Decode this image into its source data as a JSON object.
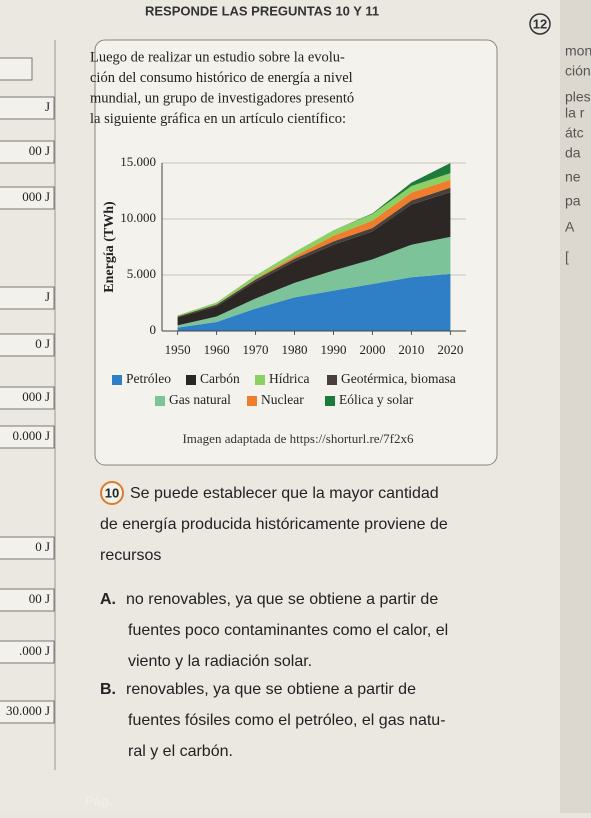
{
  "header": "RESPONDE LAS PREGUNTAS 10 Y 11",
  "number": "12",
  "intro": [
    "Luego de realizar un estudio sobre la evolu-",
    "ción del consumo histórico de energía a nivel",
    "mundial, un grupo de investigadores presentó",
    "la siguiente gráfica en un artículo científico:"
  ],
  "source": "Imagen adaptada de https://shorturl.re/7f2x6",
  "question": {
    "number": "10",
    "lines": [
      "Se puede establecer que la mayor cantidad",
      "de energía producida históricamente proviene de",
      "recursos"
    ]
  },
  "options": [
    {
      "letter": "A.",
      "lines": [
        "no renovables, ya que se obtiene a partir de",
        "fuentes poco contaminantes como el calor, el",
        "viento y la radiación solar."
      ]
    },
    {
      "letter": "B.",
      "lines": [
        "renovables, ya que se obtiene a partir de",
        "fuentes fósiles como el petróleo, el gas natu-",
        "ral y el carbón."
      ]
    }
  ],
  "page_label": "Pág.",
  "margin_left": [
    "J",
    "00 J",
    "000 J",
    "J",
    "0 J",
    "000 J",
    "0.000 J",
    "0 J",
    "00 J",
    ".000 J",
    "30.000 J"
  ],
  "margin_right": [
    "mon",
    "ción",
    "ples",
    "la r",
    "átc",
    "da",
    "ne",
    "pa",
    "A",
    "["
  ],
  "chart_data": {
    "type": "stacked_area",
    "y_label": "Energía (TWh)",
    "x": [
      1950,
      1960,
      1970,
      1980,
      1990,
      2000,
      2010,
      2020
    ],
    "xlim": [
      1946,
      2024
    ],
    "xticks": [
      1950,
      1960,
      1970,
      1980,
      1990,
      2000,
      2010,
      2020
    ],
    "ylim": [
      0,
      15000
    ],
    "yticks": [
      0,
      {
        "value": 5000,
        "label": "5.000"
      },
      {
        "value": 10000,
        "label": "10.000"
      },
      {
        "value": 15000,
        "label": "15.000"
      }
    ],
    "series": [
      {
        "name": "Petróleo",
        "color": "#2f7fc6",
        "values": [
          300,
          800,
          2000,
          3000,
          3600,
          4200,
          4800,
          5100
        ]
      },
      {
        "name": "Gas natural",
        "color": "#7cc39a",
        "values": [
          200,
          500,
          900,
          1300,
          1800,
          2200,
          2900,
          3300
        ]
      },
      {
        "name": "Carbón",
        "color": "#2c2725",
        "values": [
          700,
          900,
          1500,
          1900,
          2300,
          2500,
          3600,
          4000
        ]
      },
      {
        "name": "Geotérmica, biomasa",
        "color": "#4a403b",
        "values": [
          100,
          150,
          200,
          250,
          300,
          300,
          350,
          400
        ]
      },
      {
        "name": "Nuclear",
        "color": "#ef7d2c",
        "values": [
          0,
          0,
          50,
          200,
          500,
          650,
          700,
          700
        ]
      },
      {
        "name": "Hídrica",
        "color": "#8ccf63",
        "values": [
          100,
          200,
          300,
          400,
          500,
          600,
          600,
          600
        ]
      },
      {
        "name": "Eólica y solar",
        "color": "#1e7a3c",
        "values": [
          0,
          0,
          0,
          0,
          0,
          50,
          300,
          900
        ]
      }
    ]
  }
}
